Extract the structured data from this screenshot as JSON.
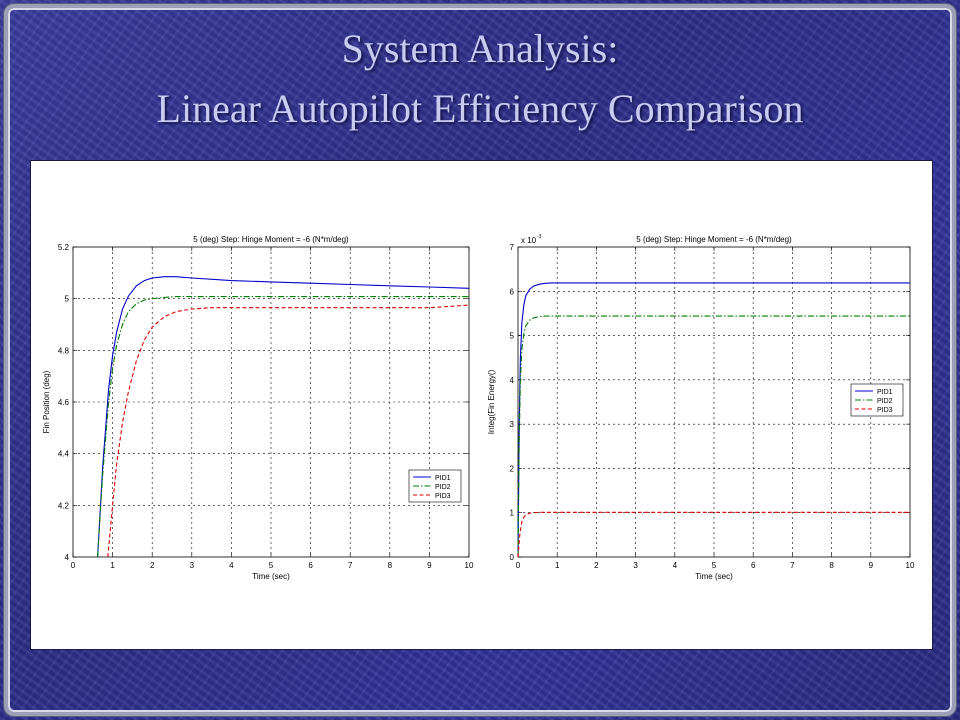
{
  "slide": {
    "title_line1": "System Analysis:",
    "title_line2": "Linear Autopilot Efficiency Comparison"
  },
  "colors": {
    "PID1": "#0000cc",
    "PID2": "#008000",
    "PID3": "#e00000"
  },
  "chart_data": [
    {
      "type": "line",
      "title": "5 (deg) Step: Hinge Moment = -6 (N*m/deg)",
      "xlabel": "Time (sec)",
      "ylabel": "Fin Position (deg)",
      "xlim": [
        0,
        10
      ],
      "ylim": [
        4,
        5.2
      ],
      "xticks": [
        "0",
        "1",
        "2",
        "3",
        "4",
        "5",
        "6",
        "7",
        "8",
        "9",
        "10"
      ],
      "yticks": [
        "4",
        "4.2",
        "4.4",
        "4.6",
        "4.8",
        "5",
        "5.2"
      ],
      "grid": true,
      "legend": "bottom-right",
      "series": [
        {
          "name": "PID1",
          "style": "solid",
          "x": [
            0.62,
            0.75,
            0.9,
            1.0,
            1.1,
            1.25,
            1.4,
            1.6,
            1.8,
            2.0,
            2.3,
            2.6,
            3.0,
            4.0,
            5.0,
            6.0,
            7.0,
            8.0,
            9.0,
            10.0
          ],
          "y": [
            4.0,
            4.35,
            4.65,
            4.78,
            4.87,
            4.96,
            5.01,
            5.05,
            5.07,
            5.08,
            5.085,
            5.085,
            5.08,
            5.07,
            5.065,
            5.06,
            5.055,
            5.05,
            5.045,
            5.04
          ]
        },
        {
          "name": "PID2",
          "style": "dashdot",
          "x": [
            0.62,
            0.75,
            0.9,
            1.0,
            1.1,
            1.25,
            1.4,
            1.6,
            1.8,
            2.0,
            2.3,
            2.6,
            3.0,
            4.0,
            5.0,
            6.0,
            7.0,
            8.0,
            9.0,
            10.0
          ],
          "y": [
            4.0,
            4.32,
            4.6,
            4.73,
            4.82,
            4.9,
            4.95,
            4.98,
            4.995,
            5.0,
            5.005,
            5.008,
            5.008,
            5.008,
            5.008,
            5.008,
            5.008,
            5.008,
            5.008,
            5.008
          ]
        },
        {
          "name": "PID3",
          "style": "dashed",
          "x": [
            0.88,
            1.0,
            1.1,
            1.25,
            1.4,
            1.6,
            1.8,
            2.0,
            2.3,
            2.6,
            3.0,
            3.5,
            4.0,
            5.0,
            6.0,
            7.0,
            8.0,
            9.0,
            9.5,
            10.0
          ],
          "y": [
            4.0,
            4.2,
            4.36,
            4.52,
            4.64,
            4.76,
            4.84,
            4.89,
            4.93,
            4.95,
            4.96,
            4.965,
            4.965,
            4.965,
            4.965,
            4.965,
            4.965,
            4.965,
            4.97,
            4.975
          ]
        }
      ]
    },
    {
      "type": "line",
      "title": "5 (deg) Step: Hinge Moment = -6 (N*m/deg)",
      "xlabel": "Time (sec)",
      "ylabel": "Integ(Fin Energy()",
      "multiplier": "x 10",
      "multiplier_exp": "-3",
      "xlim": [
        0,
        10
      ],
      "ylim": [
        0,
        7
      ],
      "xticks": [
        "0",
        "1",
        "2",
        "3",
        "4",
        "5",
        "6",
        "7",
        "8",
        "9",
        "10"
      ],
      "yticks": [
        "0",
        "1",
        "2",
        "3",
        "4",
        "5",
        "6",
        "7"
      ],
      "grid": true,
      "legend": "right",
      "series": [
        {
          "name": "PID1",
          "style": "solid",
          "x": [
            0.0,
            0.03,
            0.06,
            0.1,
            0.15,
            0.2,
            0.3,
            0.4,
            0.55,
            0.7,
            0.85,
            1.0,
            2.0,
            4.0,
            6.0,
            8.0,
            10.0
          ],
          "y": [
            0.0,
            3.0,
            4.5,
            5.3,
            5.7,
            5.9,
            6.05,
            6.12,
            6.16,
            6.18,
            6.19,
            6.19,
            6.19,
            6.19,
            6.19,
            6.19,
            6.19
          ]
        },
        {
          "name": "PID2",
          "style": "dashdot",
          "x": [
            0.0,
            0.03,
            0.06,
            0.1,
            0.15,
            0.2,
            0.3,
            0.4,
            0.55,
            0.7,
            0.85,
            1.0,
            2.0,
            4.0,
            6.0,
            8.0,
            10.0
          ],
          "y": [
            0.0,
            2.6,
            4.0,
            4.7,
            5.05,
            5.22,
            5.35,
            5.4,
            5.43,
            5.44,
            5.44,
            5.44,
            5.44,
            5.44,
            5.44,
            5.44,
            5.44
          ]
        },
        {
          "name": "PID3",
          "style": "dashed",
          "x": [
            0.0,
            0.05,
            0.1,
            0.15,
            0.2,
            0.3,
            0.4,
            0.55,
            0.7,
            1.0,
            2.0,
            4.0,
            6.0,
            8.0,
            10.0
          ],
          "y": [
            0.0,
            0.55,
            0.8,
            0.9,
            0.95,
            0.99,
            1.0,
            1.01,
            1.01,
            1.01,
            1.01,
            1.01,
            1.01,
            1.01,
            1.01
          ]
        }
      ]
    }
  ]
}
